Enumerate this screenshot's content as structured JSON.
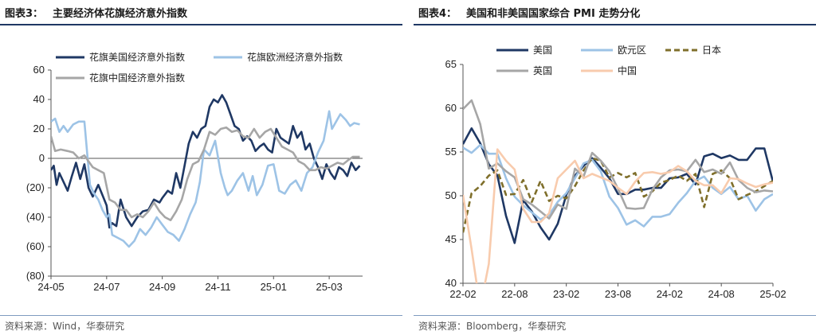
{
  "left": {
    "figure_label": "图表3：",
    "figure_title": "主要经济体花旗经济意外指数",
    "source": "资料来源：Wind，华泰研究"
  },
  "right": {
    "figure_label": "图表4：",
    "figure_title": "美国和非美国国家综合 PMI 走势分化",
    "source": "资料来源：Bloomberg，华泰研究"
  },
  "chart_data": [
    {
      "type": "line",
      "title": "主要经济体花旗经济意外指数",
      "x_scale": "month_index_from_2024-05",
      "xlim": [
        0,
        11.2
      ],
      "x_tick_labels": [
        "24-05",
        "24-07",
        "24-09",
        "24-11",
        "25-01",
        "25-03"
      ],
      "x_tick_positions": [
        0,
        2,
        4,
        6,
        8,
        10
      ],
      "ylim": [
        -80,
        60
      ],
      "y_ticks": [
        60,
        40,
        20,
        0,
        -20,
        -40,
        -60,
        -80
      ],
      "y_tick_labels": [
        "60",
        "40",
        "20",
        "0",
        "(20)",
        "(40)",
        "(60)",
        "(80)"
      ],
      "legend_position": "top",
      "series": [
        {
          "name": "花旗美国经济意外指数",
          "color": "#1f3864",
          "points": [
            [
              0,
              -8
            ],
            [
              0.1,
              -5
            ],
            [
              0.2,
              -18
            ],
            [
              0.3,
              -10
            ],
            [
              0.45,
              -16
            ],
            [
              0.6,
              -22
            ],
            [
              0.75,
              -12
            ],
            [
              0.9,
              -3
            ],
            [
              1.05,
              -14
            ],
            [
              1.2,
              -4
            ],
            [
              1.35,
              -20
            ],
            [
              1.5,
              -26
            ],
            [
              1.6,
              -22
            ],
            [
              1.7,
              -18
            ],
            [
              1.85,
              -25
            ],
            [
              2,
              -32
            ],
            [
              2.1,
              -47
            ],
            [
              2.2,
              -44
            ],
            [
              2.35,
              -46
            ],
            [
              2.5,
              -28
            ],
            [
              2.7,
              -40
            ],
            [
              2.9,
              -46
            ],
            [
              3.1,
              -40
            ],
            [
              3.3,
              -36
            ],
            [
              3.5,
              -35
            ],
            [
              3.7,
              -28
            ],
            [
              3.9,
              -30
            ],
            [
              4,
              -27
            ],
            [
              4.2,
              -22
            ],
            [
              4.35,
              -24
            ],
            [
              4.5,
              -10
            ],
            [
              4.65,
              -20
            ],
            [
              4.8,
              -5
            ],
            [
              4.95,
              10
            ],
            [
              5.1,
              18
            ],
            [
              5.25,
              14
            ],
            [
              5.4,
              20
            ],
            [
              5.55,
              22
            ],
            [
              5.7,
              35
            ],
            [
              5.85,
              40
            ],
            [
              6,
              38
            ],
            [
              6.15,
              43
            ],
            [
              6.3,
              38
            ],
            [
              6.45,
              30
            ],
            [
              6.6,
              22
            ],
            [
              6.75,
              20
            ],
            [
              6.9,
              12
            ],
            [
              7.05,
              15
            ],
            [
              7.2,
              12
            ],
            [
              7.35,
              5
            ],
            [
              7.5,
              8
            ],
            [
              7.65,
              10
            ],
            [
              7.8,
              6
            ],
            [
              7.95,
              4
            ],
            [
              8.1,
              20
            ],
            [
              8.25,
              14
            ],
            [
              8.4,
              12
            ],
            [
              8.55,
              10
            ],
            [
              8.7,
              22
            ],
            [
              8.85,
              14
            ],
            [
              9,
              18
            ],
            [
              9.15,
              6
            ],
            [
              9.3,
              10
            ],
            [
              9.45,
              0
            ],
            [
              9.6,
              -6
            ],
            [
              9.75,
              -14
            ],
            [
              9.9,
              -4
            ],
            [
              10.05,
              -10
            ],
            [
              10.2,
              -14
            ],
            [
              10.35,
              -6
            ],
            [
              10.5,
              -8
            ],
            [
              10.65,
              -12
            ],
            [
              10.8,
              -3
            ],
            [
              10.95,
              -8
            ],
            [
              11.1,
              -5
            ]
          ]
        },
        {
          "name": "花旗欧洲经济意外指数",
          "color": "#9dc3e6",
          "points": [
            [
              0,
              25
            ],
            [
              0.15,
              27
            ],
            [
              0.3,
              18
            ],
            [
              0.45,
              22
            ],
            [
              0.6,
              18
            ],
            [
              0.8,
              23
            ],
            [
              1,
              25
            ],
            [
              1.2,
              25
            ],
            [
              1.4,
              -18
            ],
            [
              1.55,
              -24
            ],
            [
              1.7,
              -28
            ],
            [
              1.85,
              -35
            ],
            [
              2,
              -40
            ],
            [
              2.1,
              -38
            ],
            [
              2.2,
              -52
            ],
            [
              2.4,
              -54
            ],
            [
              2.6,
              -56
            ],
            [
              2.8,
              -60
            ],
            [
              3,
              -56
            ],
            [
              3.2,
              -48
            ],
            [
              3.4,
              -52
            ],
            [
              3.6,
              -47
            ],
            [
              3.8,
              -40
            ],
            [
              4,
              -45
            ],
            [
              4.2,
              -50
            ],
            [
              4.4,
              -52
            ],
            [
              4.6,
              -56
            ],
            [
              4.8,
              -48
            ],
            [
              5,
              -38
            ],
            [
              5.2,
              -30
            ],
            [
              5.35,
              -16
            ],
            [
              5.5,
              6
            ],
            [
              5.7,
              2
            ],
            [
              5.9,
              12
            ],
            [
              6.1,
              -10
            ],
            [
              6.25,
              -20
            ],
            [
              6.35,
              -25
            ],
            [
              6.5,
              -22
            ],
            [
              6.7,
              -15
            ],
            [
              6.9,
              -10
            ],
            [
              7.1,
              -22
            ],
            [
              7.25,
              -12
            ],
            [
              7.4,
              -25
            ],
            [
              7.6,
              -18
            ],
            [
              7.8,
              -5
            ],
            [
              8,
              -4
            ],
            [
              8.2,
              -22
            ],
            [
              8.4,
              -24
            ],
            [
              8.6,
              -18
            ],
            [
              8.8,
              -15
            ],
            [
              9,
              -22
            ],
            [
              9.2,
              -10
            ],
            [
              9.4,
              -6
            ],
            [
              9.6,
              4
            ],
            [
              9.8,
              12
            ],
            [
              10,
              32
            ],
            [
              10.1,
              20
            ],
            [
              10.25,
              25
            ],
            [
              10.4,
              30
            ],
            [
              10.6,
              26
            ],
            [
              10.75,
              22
            ],
            [
              10.9,
              24
            ],
            [
              11.1,
              23
            ]
          ]
        },
        {
          "name": "花旗中国经济意外指数",
          "color": "#a6a6a6",
          "points": [
            [
              0,
              15
            ],
            [
              0.15,
              5
            ],
            [
              0.35,
              6
            ],
            [
              0.6,
              5
            ],
            [
              0.8,
              4
            ],
            [
              1,
              0
            ],
            [
              1.2,
              2
            ],
            [
              1.35,
              -2
            ],
            [
              1.5,
              -6
            ],
            [
              1.7,
              -8
            ],
            [
              1.9,
              -10
            ],
            [
              2.1,
              -28
            ],
            [
              2.3,
              -30
            ],
            [
              2.5,
              -35
            ],
            [
              2.7,
              -35
            ],
            [
              2.9,
              -40
            ],
            [
              3.1,
              -38
            ],
            [
              3.3,
              -40
            ],
            [
              3.5,
              -36
            ],
            [
              3.7,
              -30
            ],
            [
              3.9,
              -36
            ],
            [
              4.1,
              -40
            ],
            [
              4.3,
              -42
            ],
            [
              4.5,
              -36
            ],
            [
              4.7,
              -28
            ],
            [
              4.9,
              -14
            ],
            [
              5.1,
              -4
            ],
            [
              5.3,
              -2
            ],
            [
              5.5,
              6
            ],
            [
              5.7,
              18
            ],
            [
              5.9,
              16
            ],
            [
              6.1,
              20
            ],
            [
              6.3,
              21
            ],
            [
              6.5,
              18
            ],
            [
              6.7,
              19
            ],
            [
              6.9,
              15
            ],
            [
              7.1,
              14
            ],
            [
              7.3,
              20
            ],
            [
              7.5,
              14
            ],
            [
              7.7,
              18
            ],
            [
              7.9,
              20
            ],
            [
              8.1,
              14
            ],
            [
              8.3,
              8
            ],
            [
              8.5,
              6
            ],
            [
              8.7,
              4
            ],
            [
              8.9,
              -2
            ],
            [
              9.1,
              -4
            ],
            [
              9.3,
              -8
            ],
            [
              9.5,
              -8
            ],
            [
              9.7,
              -6
            ],
            [
              9.9,
              -7
            ],
            [
              10.1,
              -5
            ],
            [
              10.3,
              -3
            ],
            [
              10.5,
              -4
            ],
            [
              10.7,
              -1
            ],
            [
              10.85,
              1
            ],
            [
              11.1,
              1
            ]
          ]
        }
      ]
    },
    {
      "type": "line",
      "title": "美国和非美国国家综合 PMI 走势分化",
      "x_scale": "month_index_from_2022-02",
      "xlim": [
        0,
        36
      ],
      "x_tick_labels": [
        "22-02",
        "22-08",
        "23-02",
        "23-08",
        "24-02",
        "24-08",
        "25-02"
      ],
      "x_tick_positions": [
        0,
        6,
        12,
        18,
        24,
        30,
        36
      ],
      "ylim": [
        40,
        65
      ],
      "y_ticks": [
        65,
        60,
        55,
        50,
        45,
        40
      ],
      "y_tick_labels": [
        "65",
        "60",
        "55",
        "50",
        "45",
        "40"
      ],
      "legend_position": "top",
      "series": [
        {
          "name": "美国",
          "color": "#1f3864",
          "dash": "",
          "values": [
            55.9,
            57.7,
            56.0,
            53.6,
            52.3,
            47.7,
            44.6,
            49.5,
            48.2,
            46.4,
            45.0,
            46.8,
            50.1,
            52.3,
            53.4,
            54.3,
            53.2,
            52.0,
            50.2,
            50.2,
            50.7,
            50.7,
            50.9,
            50.9,
            52.0,
            52.1,
            52.5,
            51.3,
            54.5,
            54.8,
            54.3,
            54.6,
            54.1,
            54.1,
            55.4,
            55.4,
            51.6
          ]
        },
        {
          "name": "欧元区",
          "color": "#9dc3e6",
          "dash": "",
          "values": [
            55.5,
            54.9,
            55.8,
            54.8,
            54.8,
            52.0,
            49.9,
            48.9,
            48.1,
            47.3,
            47.8,
            49.3,
            50.3,
            52.0,
            53.7,
            54.1,
            52.8,
            49.9,
            48.6,
            46.7,
            47.2,
            46.5,
            47.6,
            47.6,
            47.9,
            49.2,
            50.3,
            51.7,
            52.2,
            50.9,
            50.2,
            51.0,
            49.6,
            50.0,
            48.3,
            49.6,
            50.2
          ]
        },
        {
          "name": "日本",
          "color": "#7f6f2b",
          "dash": "7,4",
          "values": [
            45.8,
            50.3,
            51.1,
            52.3,
            52.9,
            50.1,
            50.2,
            51.8,
            49.3,
            51.7,
            49.4,
            50.0,
            49.7,
            51.1,
            52.9,
            54.3,
            54.0,
            52.1,
            52.6,
            52.1,
            52.6,
            49.9,
            50.5,
            51.5,
            51.8,
            52.3,
            51.7,
            52.5,
            48.7,
            52.5,
            52.9,
            52.0,
            49.6,
            50.1,
            50.5,
            51.1,
            51.7
          ]
        },
        {
          "name": "英国",
          "color": "#a6a6a6",
          "dash": "",
          "values": [
            59.9,
            60.9,
            58.2,
            53.1,
            53.7,
            52.8,
            52.1,
            49.6,
            49.0,
            48.2,
            47.4,
            49.0,
            48.5,
            53.1,
            52.2,
            54.9,
            54.0,
            52.8,
            50.8,
            48.6,
            48.5,
            48.6,
            50.7,
            52.1,
            52.9,
            53.0,
            52.8,
            54.1,
            52.7,
            53.0,
            52.5,
            53.8,
            51.8,
            50.9,
            50.4,
            50.6,
            50.5
          ]
        },
        {
          "name": "中国",
          "color": "#f8cbad",
          "dash": "",
          "values": [
            50.1,
            43.9,
            37.2,
            42.2,
            55.3,
            54.0,
            53.0,
            48.5,
            47.0,
            47.0,
            48.0,
            52.0,
            53.0,
            54.0,
            52.0,
            52.5,
            52.1,
            51.7,
            50.9,
            50.2,
            51.6,
            52.6,
            52.7,
            52.5,
            52.7,
            53.4,
            52.8,
            51.7,
            51.2,
            51.2,
            50.3,
            52.0,
            51.9,
            51.4,
            51.0,
            51.3,
            51.5
          ]
        }
      ]
    }
  ]
}
